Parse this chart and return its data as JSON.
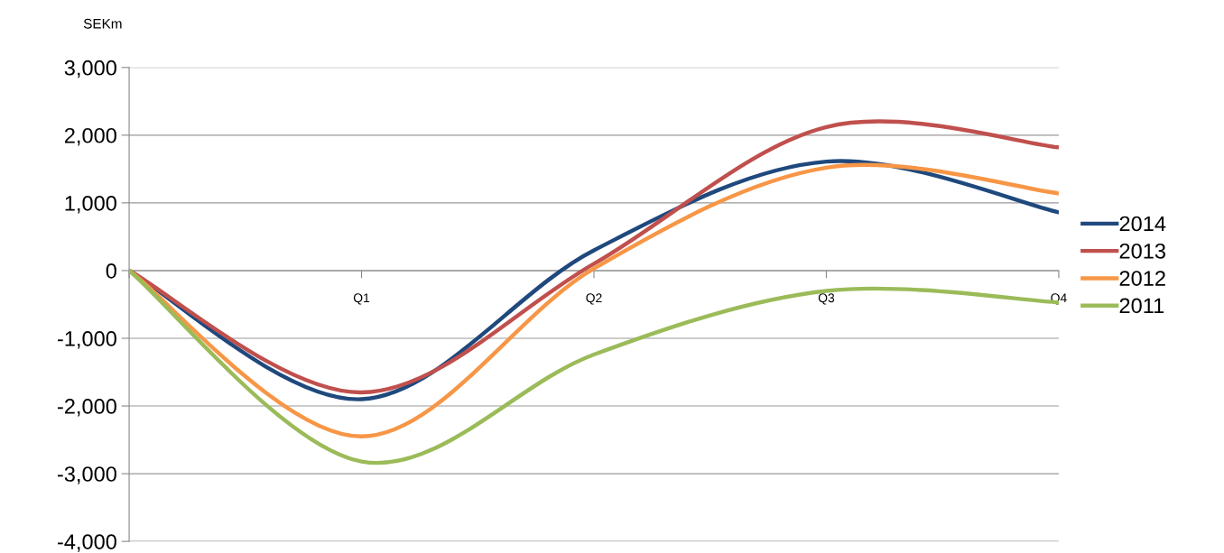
{
  "chart_data": {
    "type": "line",
    "ylabel": "SEKm",
    "categories": [
      null,
      "Q1",
      "Q2",
      "Q3",
      "Q4"
    ],
    "series": [
      {
        "name": "2014",
        "color": "#1f497d",
        "values": [
          0,
          -1900,
          300,
          1610,
          860
        ]
      },
      {
        "name": "2013",
        "color": "#c0504d",
        "values": [
          0,
          -1800,
          100,
          2120,
          1820
        ]
      },
      {
        "name": "2012",
        "color": "#f79646",
        "values": [
          0,
          -2450,
          30,
          1520,
          1140
        ]
      },
      {
        "name": "2011",
        "color": "#9bbb59",
        "values": [
          0,
          -2820,
          -1240,
          -300,
          -470
        ]
      }
    ],
    "ylim": [
      -4000,
      3000
    ],
    "yticks": [
      {
        "value": -4000,
        "label": "-4,000"
      },
      {
        "value": -3000,
        "label": "-3,000"
      },
      {
        "value": -2000,
        "label": "-2,000"
      },
      {
        "value": -1000,
        "label": "-1,000"
      },
      0,
      {
        "value": 1000,
        "label": "1,000"
      },
      {
        "value": 2000,
        "label": "2,000"
      },
      {
        "value": 3000,
        "label": "3,000"
      }
    ],
    "grid": "y",
    "legend": "right",
    "marker": "none",
    "line_style": "solid"
  }
}
